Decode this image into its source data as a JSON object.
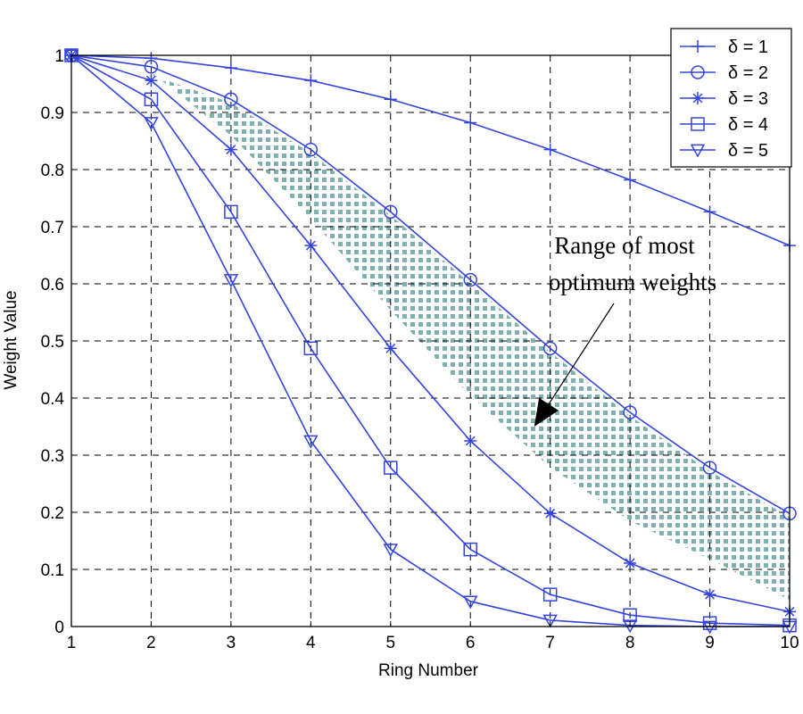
{
  "chart_data": {
    "type": "line",
    "title": "",
    "xlabel": "Ring Number",
    "ylabel": "Weight Value",
    "xlim": [
      1,
      10
    ],
    "ylim": [
      0,
      1
    ],
    "xticks": [
      1,
      2,
      3,
      4,
      5,
      6,
      7,
      8,
      9,
      10
    ],
    "yticks": [
      0,
      0.1,
      0.2,
      0.3,
      0.4,
      0.5,
      0.6,
      0.7,
      0.8,
      0.9,
      1
    ],
    "ytick_labels": [
      "0",
      "0.1",
      "0.2",
      "0.3",
      "0.4",
      "0.5",
      "0.6",
      "0.7",
      "0.8",
      "0.9",
      "1"
    ],
    "grid": true,
    "legend_position": "top-right",
    "line_color": "#3344dd",
    "x": [
      1,
      2,
      3,
      4,
      5,
      6,
      7,
      8,
      9,
      10
    ],
    "series": [
      {
        "name": "δ = 1",
        "marker": "plus",
        "values": [
          1.0,
          0.995,
          0.978,
          0.956,
          0.923,
          0.882,
          0.835,
          0.782,
          0.726,
          0.667
        ]
      },
      {
        "name": "δ = 2",
        "marker": "circle",
        "values": [
          1.0,
          0.98,
          0.923,
          0.835,
          0.726,
          0.607,
          0.487,
          0.375,
          0.278,
          0.198
        ]
      },
      {
        "name": "δ = 3",
        "marker": "star",
        "values": [
          1.0,
          0.956,
          0.835,
          0.667,
          0.487,
          0.325,
          0.198,
          0.111,
          0.056,
          0.026
        ]
      },
      {
        "name": "δ = 4",
        "marker": "square",
        "values": [
          1.0,
          0.923,
          0.726,
          0.487,
          0.278,
          0.135,
          0.056,
          0.02,
          0.006,
          0.002
        ]
      },
      {
        "name": "δ = 5",
        "marker": "triangle-down",
        "values": [
          1.0,
          0.882,
          0.607,
          0.325,
          0.135,
          0.044,
          0.011,
          0.002,
          0.0,
          0.0
        ]
      }
    ],
    "shaded_region": {
      "fill_color": "#7fb0b0",
      "upper_series": "δ = 2",
      "lower_series": "δ = 3",
      "from_x": 2,
      "to_x": 10
    },
    "annotation": {
      "lines": [
        "Range  of most",
        "optimum weights"
      ],
      "arrow_target": {
        "x": 6.8,
        "y": 0.35
      }
    }
  }
}
